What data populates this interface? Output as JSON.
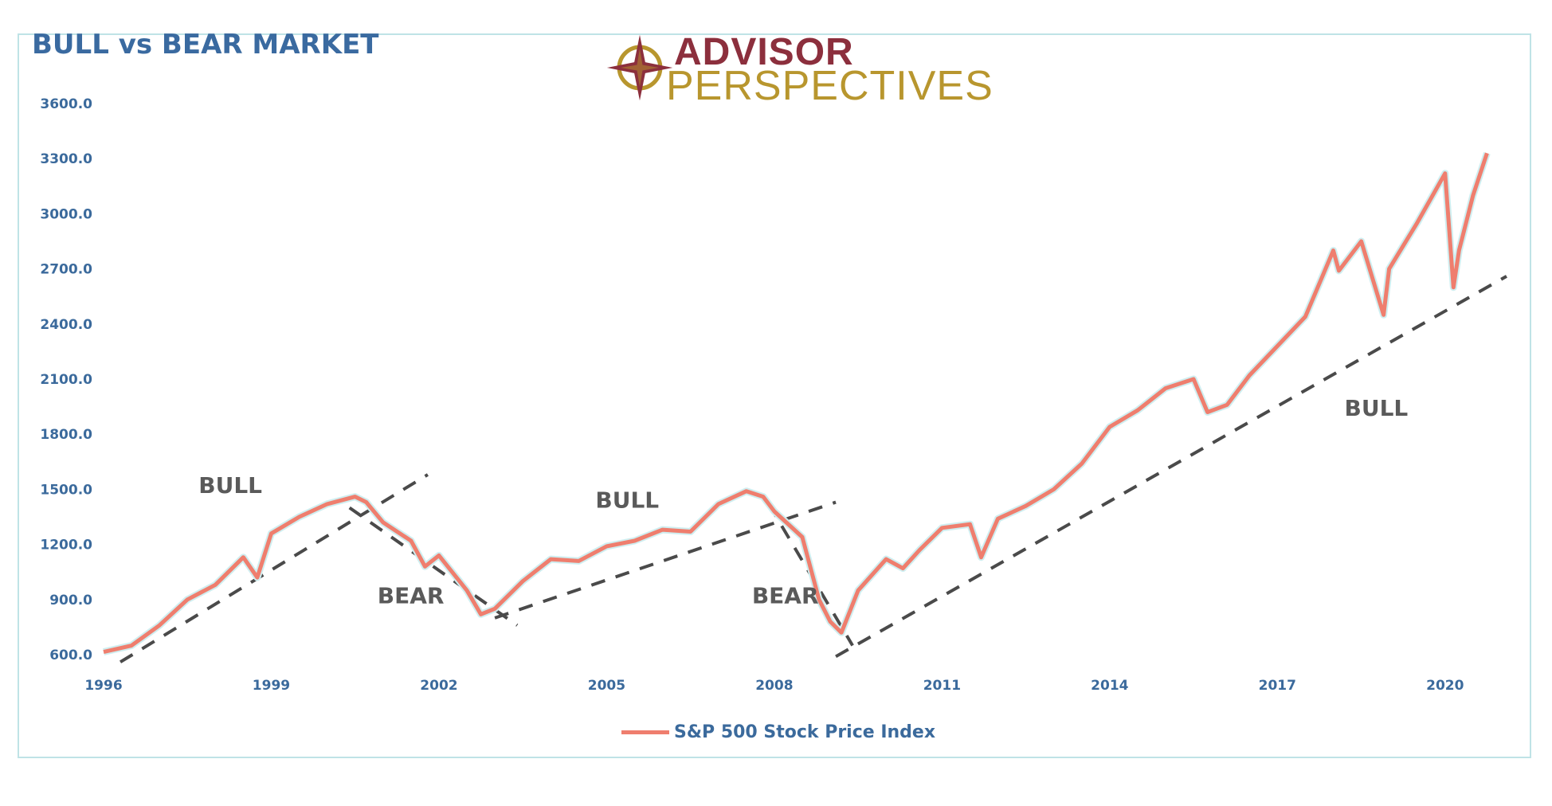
{
  "title": "BULL vs BEAR MARKET",
  "logo": {
    "line1": "ADVISOR",
    "line2": "PERSPECTIVES"
  },
  "legend": {
    "label": "S&P 500 Stock Price Index",
    "color": "#ef7e6e"
  },
  "colors": {
    "title": "#3a6aa0",
    "axis_text": "#3b6a9c",
    "series": "#ef7e6e",
    "trend": "#4a4a4a",
    "annotation": "#5a5a5a"
  },
  "chart_data": {
    "type": "line",
    "title": "BULL vs BEAR MARKET",
    "xlabel": "",
    "ylabel": "",
    "ylim": [
      600,
      3600
    ],
    "xlim": [
      1996,
      2021.3
    ],
    "y_ticks": [
      "600.0",
      "900.0",
      "1200.0",
      "1500.0",
      "1800.0",
      "2100.0",
      "2400.0",
      "2700.0",
      "3000.0",
      "3300.0",
      "3600.0"
    ],
    "x_ticks": [
      "1996",
      "1999",
      "2002",
      "2005",
      "2008",
      "2011",
      "2014",
      "2017",
      "2020"
    ],
    "grid": false,
    "legend_position": "bottom",
    "series": [
      {
        "name": "S&P 500 Stock Price Index",
        "x": [
          1996.0,
          1996.5,
          1997.0,
          1997.5,
          1998.0,
          1998.5,
          1998.75,
          1999.0,
          1999.5,
          2000.0,
          2000.5,
          2000.7,
          2001.0,
          2001.5,
          2001.75,
          2002.0,
          2002.5,
          2002.75,
          2003.0,
          2003.5,
          2004.0,
          2004.5,
          2005.0,
          2005.5,
          2006.0,
          2006.5,
          2007.0,
          2007.5,
          2007.8,
          2008.0,
          2008.5,
          2008.8,
          2009.0,
          2009.2,
          2009.5,
          2010.0,
          2010.3,
          2010.6,
          2011.0,
          2011.5,
          2011.7,
          2012.0,
          2012.5,
          2013.0,
          2013.5,
          2014.0,
          2014.5,
          2015.0,
          2015.5,
          2015.75,
          2016.1,
          2016.5,
          2017.0,
          2017.5,
          2018.0,
          2018.1,
          2018.5,
          2018.9,
          2019.0,
          2019.5,
          2020.0,
          2020.15,
          2020.25,
          2020.5,
          2020.75
        ],
        "y": [
          615,
          650,
          760,
          900,
          980,
          1130,
          1020,
          1260,
          1350,
          1420,
          1460,
          1430,
          1320,
          1220,
          1080,
          1140,
          950,
          820,
          850,
          1000,
          1120,
          1110,
          1190,
          1220,
          1280,
          1270,
          1420,
          1490,
          1460,
          1380,
          1240,
          900,
          780,
          720,
          950,
          1120,
          1070,
          1170,
          1290,
          1310,
          1130,
          1340,
          1410,
          1500,
          1640,
          1840,
          1930,
          2050,
          2100,
          1920,
          1960,
          2120,
          2280,
          2440,
          2800,
          2690,
          2850,
          2450,
          2700,
          2950,
          3220,
          2600,
          2800,
          3100,
          3330
        ]
      }
    ],
    "trend_lines": [
      {
        "kind": "BULL",
        "points": [
          [
            1996.3,
            560
          ],
          [
            2001.8,
            1580
          ]
        ]
      },
      {
        "kind": "BEAR",
        "points": [
          [
            2000.4,
            1400
          ],
          [
            2003.4,
            760
          ]
        ]
      },
      {
        "kind": "BULL",
        "points": [
          [
            2003.0,
            800
          ],
          [
            2009.1,
            1430
          ]
        ]
      },
      {
        "kind": "BEAR",
        "points": [
          [
            2007.9,
            1420
          ],
          [
            2009.4,
            650
          ]
        ]
      },
      {
        "kind": "BULL",
        "points": [
          [
            2009.1,
            590
          ],
          [
            2021.1,
            2660
          ]
        ]
      }
    ],
    "annotations": [
      {
        "text": "BULL",
        "x": 1997.7,
        "y": 1480
      },
      {
        "text": "BEAR",
        "x": 2000.9,
        "y": 880
      },
      {
        "text": "BULL",
        "x": 2004.8,
        "y": 1400
      },
      {
        "text": "BEAR",
        "x": 2007.6,
        "y": 880
      },
      {
        "text": "BULL",
        "x": 2018.2,
        "y": 1900
      }
    ]
  }
}
